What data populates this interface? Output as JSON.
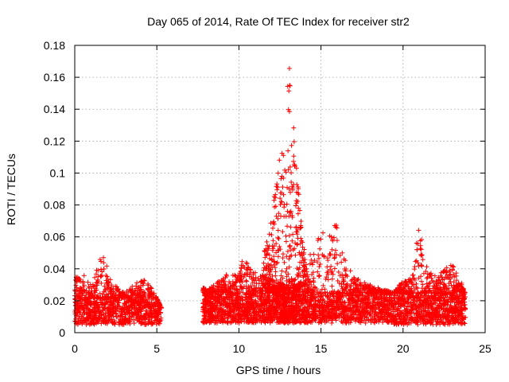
{
  "chart_data": {
    "type": "scatter",
    "title": "Day 065 of 2014, Rate Of TEC Index for receiver str2",
    "xlabel": "GPS time / hours",
    "ylabel": "ROTI / TECUs",
    "xlim": [
      0,
      25
    ],
    "ylim": [
      0,
      0.18
    ],
    "x_ticks": [
      0,
      5,
      10,
      15,
      20,
      25
    ],
    "y_ticks": [
      0,
      0.02,
      0.04,
      0.06,
      0.08,
      0.1,
      0.12,
      0.14,
      0.16,
      0.18
    ],
    "x_tick_labels": [
      "0",
      "5",
      "10",
      "15",
      "20",
      "25"
    ],
    "y_tick_labels": [
      "0",
      "0.02",
      "0.04",
      "0.06",
      "0.08",
      "0.1",
      "0.12",
      "0.14",
      "0.16",
      "0.18"
    ],
    "grid": true,
    "marker": "+",
    "color": "#ff0000",
    "series": [
      {
        "name": "ROTI",
        "segments": [
          {
            "x_range": [
              0.0,
              5.3
            ],
            "base": [
              0.005,
              0.022
            ],
            "envelope": [
              [
                0,
                0.035
              ],
              [
                0.5,
                0.038
              ],
              [
                1,
                0.03
              ],
              [
                1.5,
                0.045
              ],
              [
                1.8,
                0.051
              ],
              [
                2.2,
                0.032
              ],
              [
                3,
                0.025
              ],
              [
                4.2,
                0.036
              ],
              [
                4.6,
                0.03
              ],
              [
                5.3,
                0.015
              ]
            ],
            "count": 1100
          },
          {
            "x_range": [
              7.8,
              11.5
            ],
            "base": [
              0.006,
              0.025
            ],
            "envelope": [
              [
                7.8,
                0.028
              ],
              [
                8.5,
                0.03
              ],
              [
                9.3,
                0.037
              ],
              [
                10,
                0.036
              ],
              [
                10.3,
                0.05
              ],
              [
                10.8,
                0.038
              ],
              [
                11.5,
                0.04
              ]
            ],
            "count": 900
          },
          {
            "x_range": [
              11.5,
              14.2
            ],
            "base": [
              0.006,
              0.03
            ],
            "envelope": [
              [
                11.5,
                0.05
              ],
              [
                12,
                0.075
              ],
              [
                12.5,
                0.115
              ],
              [
                12.8,
                0.13
              ],
              [
                13.1,
                0.172
              ],
              [
                13.4,
                0.12
              ],
              [
                13.7,
                0.08
              ],
              [
                14.2,
                0.04
              ]
            ],
            "count": 1100
          },
          {
            "x_range": [
              14.2,
              19.4
            ],
            "base": [
              0.006,
              0.025
            ],
            "envelope": [
              [
                14.2,
                0.045
              ],
              [
                14.8,
                0.065
              ],
              [
                15.1,
                0.075
              ],
              [
                15.5,
                0.06
              ],
              [
                15.9,
                0.07
              ],
              [
                16.3,
                0.05
              ],
              [
                17,
                0.035
              ],
              [
                18,
                0.03
              ],
              [
                19.4,
                0.025
              ]
            ],
            "count": 1100
          },
          {
            "x_range": [
              19.4,
              23.8
            ],
            "base": [
              0.005,
              0.025
            ],
            "envelope": [
              [
                19.4,
                0.025
              ],
              [
                20,
                0.033
              ],
              [
                20.5,
                0.035
              ],
              [
                21,
                0.07
              ],
              [
                21.3,
                0.045
              ],
              [
                22,
                0.035
              ],
              [
                22.6,
                0.04
              ],
              [
                23,
                0.046
              ],
              [
                23.8,
                0.025
              ]
            ],
            "count": 1050
          }
        ]
      }
    ]
  }
}
